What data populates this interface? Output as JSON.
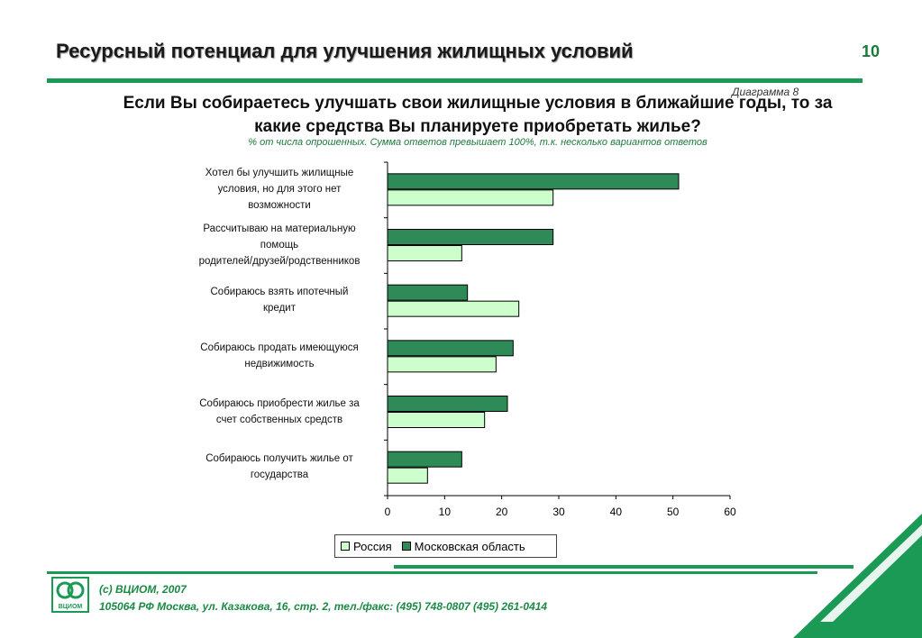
{
  "header": {
    "title": "Ресурсный потенциал для улучшения жилищных условий",
    "page_number": "10",
    "diagram_label": "Диаграмма 8"
  },
  "question": {
    "line1": "Если Вы собираетесь улучшать свои жилищные условия в ближайшие годы, то за",
    "line2": "какие средства Вы планируете приобретать жилье?",
    "subtitle": "% от числа опрошенных. Сумма ответов превышает 100%, т.к. несколько вариантов ответов"
  },
  "chart_data": {
    "type": "bar",
    "orientation": "horizontal",
    "categories": [
      [
        "Хотел бы улучшить жилищные",
        "условия, но для этого нет",
        "возможности"
      ],
      [
        "Рассчитываю на материальную",
        "помощь",
        "родителей/друзей/родственников"
      ],
      [
        "Собираюсь взять ипотечный",
        "кредит"
      ],
      [
        "Собираюсь продать имеющуюся",
        "недвижимость"
      ],
      [
        "Собираюсь приобрести жилье за",
        "счет собственных средств"
      ],
      [
        "Собираюсь получить жилье от",
        "государства"
      ]
    ],
    "series": [
      {
        "name": "Московская область",
        "color": "#2e8b57",
        "values": [
          51,
          29,
          14,
          22,
          21,
          13
        ]
      },
      {
        "name": "Россия",
        "color": "#ccffcc",
        "values": [
          29,
          13,
          23,
          19,
          17,
          7
        ]
      }
    ],
    "xlim": [
      0,
      60
    ],
    "xticks": [
      0,
      10,
      20,
      30,
      40,
      50,
      60
    ],
    "legend_position": "bottom",
    "grid": false
  },
  "legend": {
    "russia": "Россия",
    "moscow_region": "Московская область"
  },
  "footer": {
    "copyright": "(с) ВЦИОМ, 2007",
    "address": "105064 РФ Москва, ул. Казакова, 16, стр. 2, тел./факс: (495) 748-0807 (495) 261-0414"
  },
  "colors": {
    "accent": "#1a9a55",
    "series_dark": "#2e8b57",
    "series_light": "#ccffcc"
  }
}
